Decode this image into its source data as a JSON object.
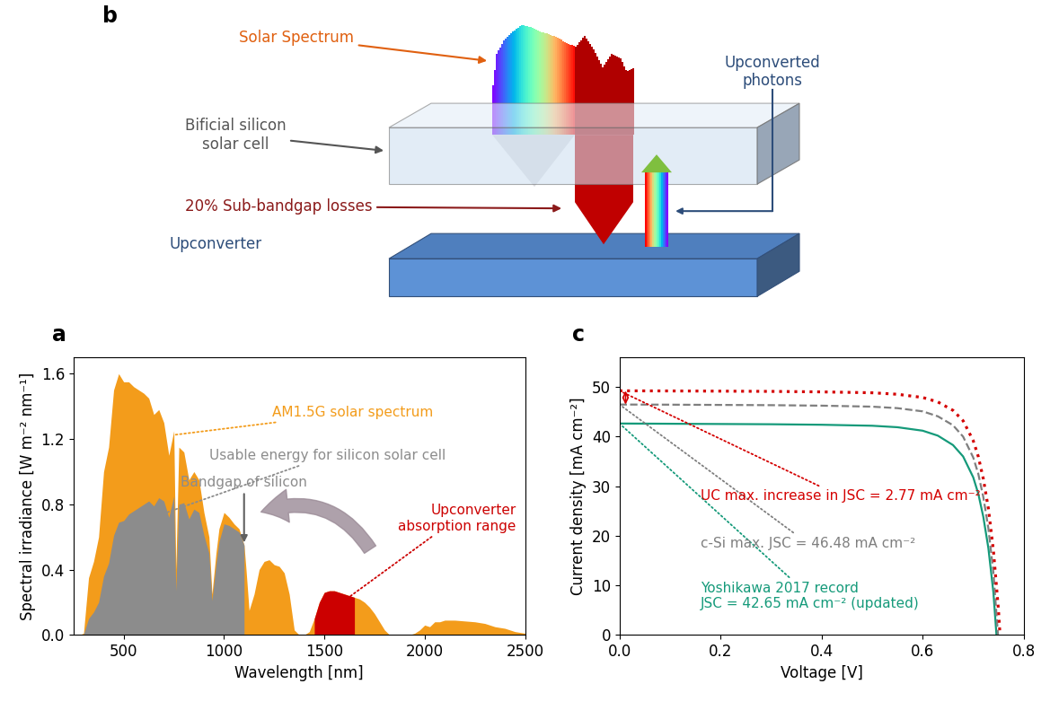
{
  "chart_data": [
    {
      "panel": "a",
      "type": "area",
      "xlabel": "Wavelength [nm]",
      "ylabel": "Spectral irradiance [W m⁻² nm⁻¹]",
      "x": [
        280,
        300,
        325,
        350,
        375,
        400,
        425,
        450,
        475,
        500,
        525,
        550,
        575,
        600,
        625,
        650,
        675,
        700,
        725,
        750,
        760,
        775,
        800,
        825,
        850,
        875,
        900,
        925,
        940,
        960,
        975,
        1000,
        1025,
        1050,
        1075,
        1100,
        1110,
        1125,
        1150,
        1175,
        1200,
        1225,
        1250,
        1275,
        1300,
        1325,
        1350,
        1375,
        1400,
        1425,
        1450,
        1475,
        1500,
        1525,
        1550,
        1575,
        1600,
        1625,
        1650,
        1675,
        1700,
        1725,
        1750,
        1775,
        1800,
        1825,
        1850,
        1875,
        1900,
        1925,
        1950,
        1975,
        2000,
        2025,
        2050,
        2075,
        2100,
        2150,
        2200,
        2250,
        2300,
        2350,
        2400,
        2450,
        2500
      ],
      "series": [
        {
          "name": "AM1.5G solar spectrum",
          "color": "#f39c1b",
          "values": [
            0,
            0.01,
            0.35,
            0.45,
            0.6,
            1.0,
            1.15,
            1.5,
            1.6,
            1.55,
            1.55,
            1.52,
            1.5,
            1.48,
            1.45,
            1.35,
            1.38,
            1.3,
            1.1,
            1.25,
            0.4,
            1.15,
            1.12,
            0.95,
            1.0,
            0.95,
            0.75,
            0.6,
            0.25,
            0.5,
            0.65,
            0.75,
            0.72,
            0.68,
            0.65,
            0.55,
            0.4,
            0.15,
            0.25,
            0.4,
            0.45,
            0.46,
            0.43,
            0.42,
            0.38,
            0.25,
            0.03,
            0,
            0,
            0.02,
            0.1,
            0.2,
            0.26,
            0.27,
            0.27,
            0.26,
            0.25,
            0.24,
            0.23,
            0.22,
            0.2,
            0.17,
            0.13,
            0.08,
            0.03,
            0,
            0,
            0,
            0,
            0,
            0.01,
            0.03,
            0.06,
            0.05,
            0.08,
            0.08,
            0.09,
            0.09,
            0.085,
            0.08,
            0.07,
            0.05,
            0.04,
            0.02,
            0.01
          ]
        },
        {
          "name": "Usable energy for silicon solar cell",
          "color": "#8c8c8c",
          "values": [
            0,
            0.003,
            0.1,
            0.14,
            0.2,
            0.36,
            0.44,
            0.61,
            0.69,
            0.7,
            0.74,
            0.76,
            0.78,
            0.8,
            0.82,
            0.79,
            0.84,
            0.82,
            0.72,
            0.85,
            0.27,
            0.8,
            0.81,
            0.71,
            0.77,
            0.75,
            0.61,
            0.5,
            0.21,
            0.43,
            0.57,
            0.68,
            0.67,
            0.65,
            0.63,
            0.55,
            null,
            null,
            null,
            null,
            null,
            null,
            null,
            null,
            null,
            null,
            null,
            null,
            null,
            null,
            null,
            null,
            null,
            null,
            null,
            null,
            null,
            null,
            null,
            null,
            null,
            null,
            null,
            null,
            null,
            null,
            null,
            null,
            null,
            null,
            null,
            null,
            null,
            null,
            null,
            null,
            null,
            null,
            null,
            null,
            null,
            null,
            null,
            null,
            null
          ]
        },
        {
          "name": "Upconverter\nabsorption range",
          "color": "#cc0000",
          "values": [
            null,
            null,
            null,
            null,
            null,
            null,
            null,
            null,
            null,
            null,
            null,
            null,
            null,
            null,
            null,
            null,
            null,
            null,
            null,
            null,
            null,
            null,
            null,
            null,
            null,
            null,
            null,
            null,
            null,
            null,
            null,
            null,
            null,
            null,
            null,
            null,
            null,
            null,
            null,
            null,
            null,
            null,
            null,
            null,
            null,
            null,
            null,
            null,
            null,
            null,
            0.1,
            0.2,
            0.26,
            0.27,
            0.27,
            0.26,
            0.25,
            0.24,
            0.23,
            null,
            null,
            null,
            null,
            null,
            null,
            null,
            null,
            null,
            null,
            null,
            null,
            null,
            null,
            null,
            null,
            null,
            null,
            null,
            null,
            null,
            null,
            null,
            null,
            null,
            null
          ]
        }
      ],
      "annotations": [
        "Bandgap of silicon"
      ],
      "xlim": [
        250,
        2500
      ],
      "xticks": [
        500,
        1000,
        1500,
        2000,
        2500
      ],
      "ylim": [
        0,
        1.7
      ],
      "yticks": [
        {
          "value": 0,
          "label": "0.0"
        },
        0.4,
        0.8,
        1.2,
        1.6
      ]
    },
    {
      "panel": "c",
      "type": "line",
      "xlabel": "Voltage [V]",
      "ylabel": "Current density [mA cm⁻²]",
      "series": [
        {
          "name": "Yoshikawa 2017 record\nJSC = 42.65 mA cm⁻² (updated)",
          "color": "#159a7a",
          "line_style": "solid",
          "x": [
            0,
            0.1,
            0.2,
            0.3,
            0.4,
            0.5,
            0.55,
            0.6,
            0.63,
            0.66,
            0.68,
            0.7,
            0.71,
            0.72,
            0.73,
            0.74,
            0.746
          ],
          "values": [
            42.65,
            42.6,
            42.55,
            42.5,
            42.4,
            42.2,
            41.9,
            41.2,
            40.2,
            38.3,
            36.0,
            31.8,
            28.5,
            23.8,
            17.5,
            8.5,
            0
          ]
        },
        {
          "name": "c-Si max. JSC = 46.48 mA cm⁻²",
          "color": "#7f7f7f",
          "line_style": "dashed",
          "x": [
            0,
            0.1,
            0.2,
            0.3,
            0.4,
            0.5,
            0.55,
            0.6,
            0.63,
            0.66,
            0.68,
            0.7,
            0.71,
            0.72,
            0.73,
            0.74,
            0.749
          ],
          "values": [
            46.48,
            46.45,
            46.4,
            46.35,
            46.25,
            46.05,
            45.75,
            45.1,
            44.1,
            42.3,
            40.0,
            35.8,
            32.5,
            27.8,
            21.5,
            12.5,
            0
          ]
        },
        {
          "name": "UC max. increase in JSC = 2.77 mA cm⁻²",
          "color": "#d40000",
          "line_style": "dotted",
          "x": [
            0,
            0.1,
            0.2,
            0.3,
            0.4,
            0.5,
            0.55,
            0.6,
            0.63,
            0.66,
            0.68,
            0.7,
            0.71,
            0.72,
            0.73,
            0.74,
            0.75,
            0.753
          ],
          "values": [
            49.25,
            49.22,
            49.18,
            49.13,
            49.03,
            48.85,
            48.55,
            47.9,
            47.0,
            45.3,
            43.2,
            39.2,
            36.0,
            31.5,
            25.5,
            17.0,
            5.0,
            0
          ]
        }
      ],
      "xlim": [
        0,
        0.8
      ],
      "xticks": [
        {
          "value": 0,
          "label": "0.0"
        },
        0.2,
        0.4,
        0.6,
        0.8
      ],
      "ylim": [
        0,
        56
      ],
      "yticks": [
        0,
        10,
        20,
        30,
        40,
        50
      ]
    }
  ],
  "diagram": {
    "panel": "b",
    "labels": {
      "solar_spectrum": "Solar Spectrum",
      "cell": "Bificial silicon\nsolar cell",
      "losses": "20% Sub-bandgap losses",
      "upconverter": "Upconverter",
      "upconverted": "Upconverted\nphotons"
    }
  }
}
